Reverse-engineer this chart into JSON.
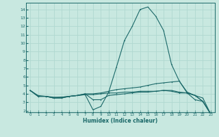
{
  "xlabel": "Humidex (Indice chaleur)",
  "xlim": [
    -0.5,
    23.5
  ],
  "ylim": [
    1.8,
    14.8
  ],
  "yticks": [
    2,
    3,
    4,
    5,
    6,
    7,
    8,
    9,
    10,
    11,
    12,
    13,
    14
  ],
  "xticks": [
    0,
    1,
    2,
    3,
    4,
    5,
    6,
    7,
    8,
    9,
    10,
    11,
    12,
    13,
    14,
    15,
    16,
    17,
    18,
    19,
    20,
    21,
    22,
    23
  ],
  "background_color": "#c8e8e0",
  "grid_color": "#b0d8d0",
  "line_color": "#1a6868",
  "series": [
    {
      "x": [
        0,
        1,
        2,
        3,
        4,
        5,
        6,
        7,
        8,
        9,
        10,
        11,
        12,
        13,
        14,
        15,
        16,
        17,
        18,
        19,
        20,
        21,
        22,
        23
      ],
      "y": [
        4.4,
        3.7,
        3.7,
        3.5,
        3.5,
        3.7,
        3.8,
        3.9,
        2.1,
        2.5,
        4.2,
        7.2,
        10.3,
        12.0,
        14.0,
        14.3,
        13.2,
        11.5,
        7.5,
        5.5,
        4.1,
        3.3,
        3.1,
        1.6
      ]
    },
    {
      "x": [
        0,
        1,
        2,
        3,
        4,
        5,
        6,
        7,
        8,
        9,
        10,
        11,
        12,
        13,
        14,
        15,
        16,
        17,
        18,
        19,
        20,
        21,
        22,
        23
      ],
      "y": [
        4.4,
        3.7,
        3.7,
        3.5,
        3.6,
        3.7,
        3.8,
        4.0,
        4.0,
        4.1,
        4.3,
        4.5,
        4.6,
        4.7,
        4.8,
        5.0,
        5.2,
        5.3,
        5.4,
        5.5,
        4.2,
        3.8,
        3.5,
        1.6
      ]
    },
    {
      "x": [
        0,
        1,
        2,
        3,
        4,
        5,
        6,
        7,
        8,
        9,
        10,
        11,
        12,
        13,
        14,
        15,
        16,
        17,
        18,
        19,
        20,
        21,
        22,
        23
      ],
      "y": [
        4.4,
        3.8,
        3.7,
        3.6,
        3.6,
        3.7,
        3.8,
        3.9,
        3.9,
        4.0,
        4.1,
        4.1,
        4.2,
        4.2,
        4.3,
        4.3,
        4.3,
        4.4,
        4.3,
        4.1,
        4.1,
        3.8,
        3.1,
        1.6
      ]
    },
    {
      "x": [
        0,
        1,
        2,
        3,
        4,
        5,
        6,
        7,
        8,
        9,
        10,
        11,
        12,
        13,
        14,
        15,
        16,
        17,
        18,
        19,
        20,
        21,
        22,
        23
      ],
      "y": [
        4.4,
        3.7,
        3.7,
        3.5,
        3.5,
        3.7,
        3.8,
        4.0,
        3.3,
        3.3,
        3.8,
        3.9,
        4.0,
        4.1,
        4.2,
        4.2,
        4.3,
        4.4,
        4.4,
        4.2,
        4.1,
        3.8,
        3.1,
        1.6
      ]
    }
  ]
}
